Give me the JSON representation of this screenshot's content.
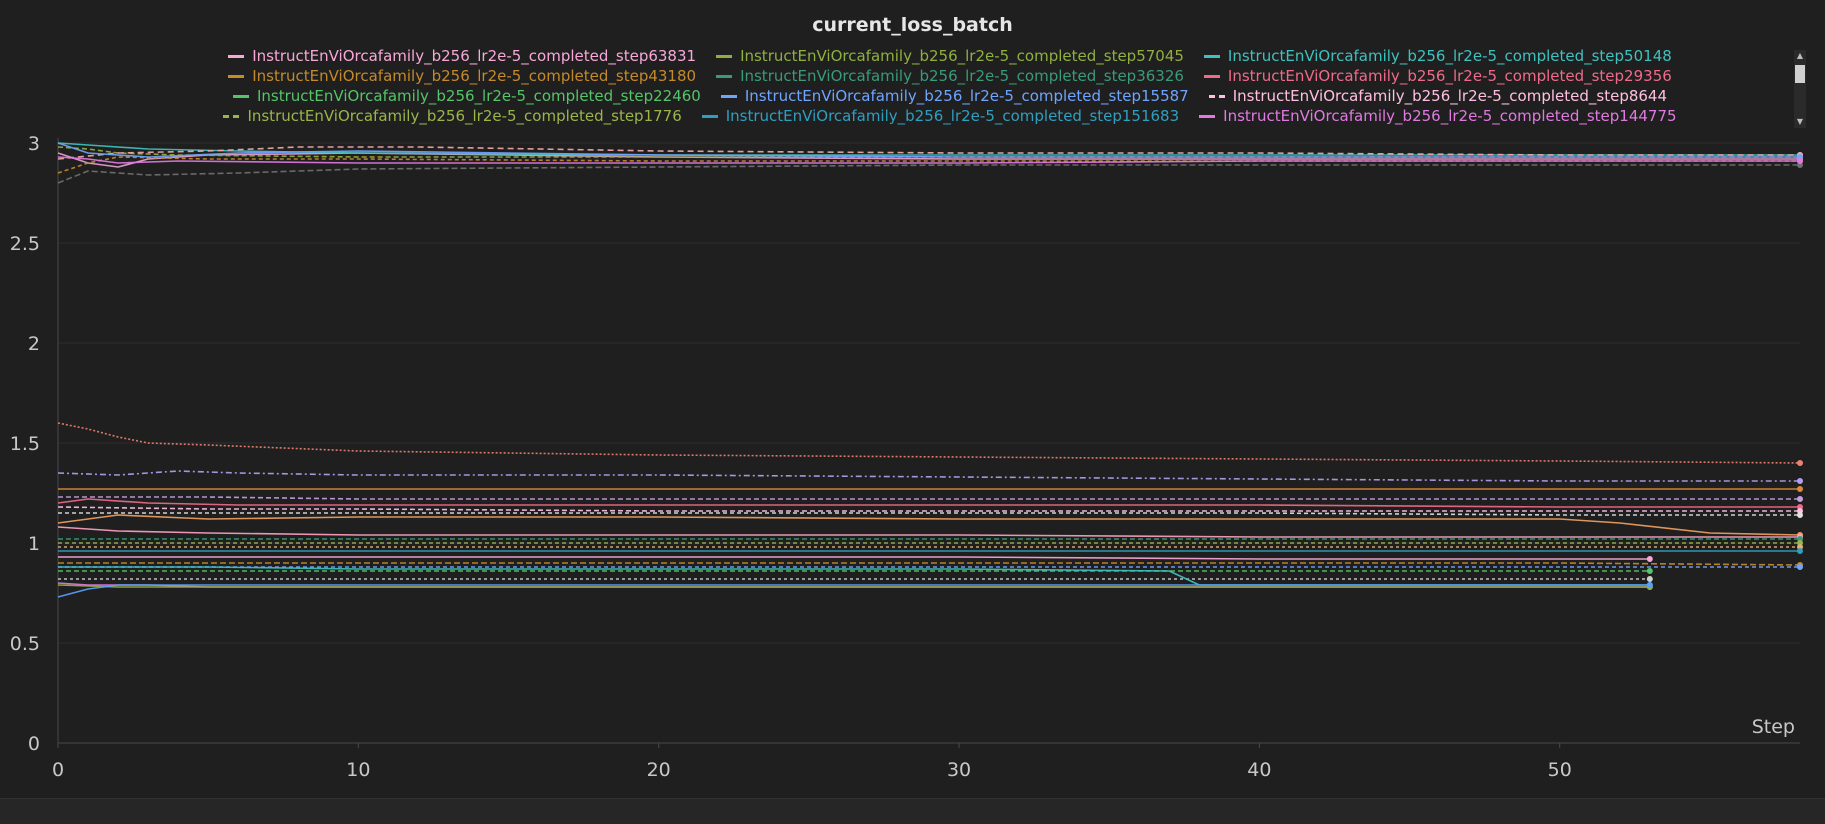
{
  "chart_data": {
    "type": "line",
    "title": "current_loss_batch",
    "xlabel": "Step",
    "ylabel": "",
    "xlim": [
      0,
      58
    ],
    "ylim": [
      0,
      3
    ],
    "x_ticks": [
      "0",
      "10",
      "20",
      "30",
      "40",
      "50"
    ],
    "y_ticks": [
      "0",
      "0.5",
      "1",
      "1.5",
      "2",
      "2.5",
      "3"
    ],
    "grid": true,
    "legend_position": "top",
    "legend": [
      {
        "name": "InstructEnViOrcafamily_b256_lr2e-5_completed_step63831",
        "color": "#f7a8d8",
        "dashed": false
      },
      {
        "name": "InstructEnViOrcafamily_b256_lr2e-5_completed_step57045",
        "color": "#8fb040",
        "dashed": false
      },
      {
        "name": "InstructEnViOrcafamily_b256_lr2e-5_completed_step50148",
        "color": "#3fc1bf",
        "dashed": false
      },
      {
        "name": "InstructEnViOrcafamily_b256_lr2e-5_completed_step43180",
        "color": "#c58a2a",
        "dashed": false
      },
      {
        "name": "InstructEnViOrcafamily_b256_lr2e-5_completed_step36326",
        "color": "#3a9a7a",
        "dashed": false
      },
      {
        "name": "InstructEnViOrcafamily_b256_lr2e-5_completed_step29356",
        "color": "#f06a8a",
        "dashed": false
      },
      {
        "name": "InstructEnViOrcafamily_b256_lr2e-5_completed_step22460",
        "color": "#55c46a",
        "dashed": false
      },
      {
        "name": "InstructEnViOrcafamily_b256_lr2e-5_completed_step15587",
        "color": "#6fa4ff",
        "dashed": false
      },
      {
        "name": "InstructEnViOrcafamily_b256_lr2e-5_completed_step8644",
        "color": "#ffc0e0",
        "dashed": true
      },
      {
        "name": "InstructEnViOrcafamily_b256_lr2e-5_completed_step1776",
        "color": "#9ab54a",
        "dashed": true
      },
      {
        "name": "InstructEnViOrcafamily_b256_lr2e-5_completed_step151683",
        "color": "#2f9fc0",
        "dashed": false
      },
      {
        "name": "InstructEnViOrcafamily_b256_lr2e-5_completed_step144775",
        "color": "#e07ae0",
        "dashed": false
      }
    ],
    "series": [
      {
        "color": "#e8a0d0",
        "dash": "",
        "x": [
          0,
          1,
          2,
          3,
          5,
          10,
          20,
          30,
          40,
          50,
          58
        ],
        "y": [
          2.95,
          2.9,
          2.88,
          2.92,
          2.94,
          2.95,
          2.93,
          2.92,
          2.92,
          2.92,
          2.92
        ]
      },
      {
        "color": "#8fb040",
        "dash": "5,3",
        "x": [
          0,
          1,
          2,
          4,
          10,
          20,
          30,
          40,
          50,
          58
        ],
        "y": [
          2.98,
          2.97,
          2.95,
          2.94,
          2.93,
          2.93,
          2.93,
          2.93,
          2.93,
          2.93
        ]
      },
      {
        "color": "#3fc1bf",
        "dash": "",
        "x": [
          0,
          1,
          3,
          6,
          10,
          20,
          30,
          40,
          50,
          58
        ],
        "y": [
          3.0,
          2.99,
          2.97,
          2.96,
          2.95,
          2.94,
          2.94,
          2.94,
          2.94,
          2.94
        ]
      },
      {
        "color": "#c58a2a",
        "dash": "4,3",
        "x": [
          0,
          1,
          2,
          5,
          10,
          20,
          30,
          40,
          50,
          58
        ],
        "y": [
          2.85,
          2.9,
          2.93,
          2.92,
          2.92,
          2.91,
          2.91,
          2.91,
          2.91,
          2.91
        ]
      },
      {
        "color": "#707070",
        "dash": "6,3",
        "x": [
          0,
          1,
          3,
          6,
          10,
          20,
          30,
          40,
          50,
          58
        ],
        "y": [
          2.8,
          2.86,
          2.84,
          2.85,
          2.87,
          2.88,
          2.89,
          2.89,
          2.89,
          2.89
        ]
      },
      {
        "color": "#f4a8a8",
        "dash": "6,4",
        "x": [
          0,
          2,
          5,
          8,
          12,
          20,
          30,
          40,
          50,
          58
        ],
        "y": [
          2.92,
          2.95,
          2.96,
          2.98,
          2.98,
          2.96,
          2.95,
          2.95,
          2.94,
          2.94
        ]
      },
      {
        "color": "#6fa4ff",
        "dash": "",
        "x": [
          0,
          1,
          3,
          6,
          10,
          20,
          30,
          40,
          50,
          58
        ],
        "y": [
          3.0,
          2.95,
          2.93,
          2.95,
          2.96,
          2.94,
          2.93,
          2.93,
          2.93,
          2.93
        ]
      },
      {
        "color": "#e07ae0",
        "dash": "",
        "x": [
          0,
          1,
          2,
          4,
          10,
          20,
          30,
          40,
          50,
          58
        ],
        "y": [
          2.93,
          2.92,
          2.9,
          2.91,
          2.9,
          2.9,
          2.9,
          2.91,
          2.91,
          2.91
        ]
      },
      {
        "color": "#f08070",
        "dash": "2,2",
        "x": [
          0,
          1,
          2,
          3,
          5,
          10,
          15,
          20,
          30,
          40,
          50,
          58
        ],
        "y": [
          1.6,
          1.57,
          1.53,
          1.5,
          1.49,
          1.46,
          1.45,
          1.44,
          1.43,
          1.42,
          1.41,
          1.4
        ]
      },
      {
        "color": "#b0a0f0",
        "dash": "6,3,2,3",
        "x": [
          0,
          2,
          4,
          6,
          10,
          20,
          30,
          40,
          50,
          58
        ],
        "y": [
          1.35,
          1.34,
          1.36,
          1.35,
          1.34,
          1.34,
          1.33,
          1.32,
          1.31,
          1.31
        ]
      },
      {
        "color": "#d98a3a",
        "dash": "",
        "x": [
          0,
          2,
          5,
          10,
          20,
          30,
          40,
          50,
          58
        ],
        "y": [
          1.27,
          1.27,
          1.27,
          1.27,
          1.27,
          1.27,
          1.27,
          1.27,
          1.27
        ]
      },
      {
        "color": "#c4a0e0",
        "dash": "5,3",
        "x": [
          0,
          5,
          10,
          20,
          30,
          40,
          50,
          58
        ],
        "y": [
          1.23,
          1.23,
          1.22,
          1.22,
          1.22,
          1.22,
          1.22,
          1.22
        ]
      },
      {
        "color": "#f06a8a",
        "dash": "",
        "x": [
          0,
          1,
          3,
          6,
          10,
          20,
          30,
          40,
          50,
          58
        ],
        "y": [
          1.2,
          1.22,
          1.2,
          1.19,
          1.19,
          1.19,
          1.19,
          1.19,
          1.18,
          1.18
        ]
      },
      {
        "color": "#ffc0e0",
        "dash": "5,3",
        "x": [
          0,
          5,
          10,
          20,
          30,
          40,
          50,
          58
        ],
        "y": [
          1.18,
          1.17,
          1.17,
          1.16,
          1.16,
          1.16,
          1.16,
          1.16
        ]
      },
      {
        "color": "#e0e0e0",
        "dash": "4,3",
        "x": [
          0,
          5,
          10,
          20,
          30,
          40,
          50,
          58
        ],
        "y": [
          1.15,
          1.15,
          1.15,
          1.15,
          1.15,
          1.15,
          1.14,
          1.14
        ]
      },
      {
        "color": "#f0a060",
        "dash": "",
        "x": [
          0,
          2,
          5,
          10,
          20,
          30,
          40,
          50,
          52,
          55,
          58
        ],
        "y": [
          1.1,
          1.14,
          1.12,
          1.13,
          1.13,
          1.12,
          1.12,
          1.12,
          1.1,
          1.05,
          1.04
        ]
      },
      {
        "color": "#ff9fc0",
        "dash": "",
        "x": [
          0,
          2,
          5,
          10,
          20,
          30,
          40,
          50,
          58
        ],
        "y": [
          1.08,
          1.06,
          1.05,
          1.04,
          1.04,
          1.04,
          1.03,
          1.03,
          1.03
        ]
      },
      {
        "color": "#3a9a7a",
        "dash": "5,3",
        "x": [
          0,
          5,
          10,
          20,
          30,
          40,
          50,
          58
        ],
        "y": [
          1.02,
          1.02,
          1.02,
          1.02,
          1.02,
          1.02,
          1.02,
          1.02
        ]
      },
      {
        "color": "#9ab54a",
        "dash": "4,3",
        "x": [
          0,
          5,
          10,
          20,
          30,
          40,
          50,
          58
        ],
        "y": [
          1.0,
          1.0,
          1.0,
          1.0,
          1.0,
          1.0,
          1.0,
          1.0
        ]
      },
      {
        "color": "#e0b070",
        "dash": "3,3",
        "x": [
          0,
          5,
          10,
          20,
          30,
          40,
          50,
          58
        ],
        "y": [
          0.98,
          0.98,
          0.98,
          0.98,
          0.98,
          0.98,
          0.98,
          0.98
        ]
      },
      {
        "color": "#2f9fc0",
        "dash": "",
        "x": [
          0,
          5,
          10,
          20,
          30,
          40,
          50,
          58
        ],
        "y": [
          0.96,
          0.96,
          0.96,
          0.96,
          0.96,
          0.96,
          0.96,
          0.96
        ]
      },
      {
        "color": "#f7a8d8",
        "dash": "",
        "x": [
          0,
          5,
          10,
          20,
          30,
          40,
          50,
          53
        ],
        "y": [
          0.93,
          0.93,
          0.93,
          0.93,
          0.93,
          0.92,
          0.92,
          0.92
        ]
      },
      {
        "color": "#c58a2a",
        "dash": "6,3",
        "x": [
          0,
          5,
          10,
          20,
          30,
          40,
          50,
          58
        ],
        "y": [
          0.9,
          0.9,
          0.9,
          0.9,
          0.9,
          0.9,
          0.9,
          0.89
        ]
      },
      {
        "color": "#6fa4ff",
        "dash": "4,3",
        "x": [
          0,
          5,
          10,
          20,
          30,
          40,
          50,
          58
        ],
        "y": [
          0.88,
          0.88,
          0.88,
          0.88,
          0.88,
          0.88,
          0.88,
          0.88
        ]
      },
      {
        "color": "#55c46a",
        "dash": "5,3",
        "x": [
          0,
          5,
          10,
          20,
          30,
          40,
          50,
          53
        ],
        "y": [
          0.86,
          0.86,
          0.86,
          0.86,
          0.86,
          0.86,
          0.86,
          0.86
        ]
      },
      {
        "color": "#d0d0d0",
        "dash": "3,3",
        "x": [
          0,
          5,
          10,
          20,
          30,
          40,
          50,
          53
        ],
        "y": [
          0.82,
          0.82,
          0.82,
          0.82,
          0.82,
          0.82,
          0.82,
          0.82
        ]
      },
      {
        "color": "#3fc1bf",
        "dash": "",
        "x": [
          0,
          5,
          10,
          20,
          30,
          37,
          38,
          40,
          50,
          53
        ],
        "y": [
          0.88,
          0.88,
          0.87,
          0.87,
          0.87,
          0.86,
          0.79,
          0.79,
          0.79,
          0.79
        ]
      },
      {
        "color": "#e07ae0",
        "dash": "",
        "x": [
          0,
          1,
          3,
          5,
          10,
          20,
          30,
          40,
          50,
          53
        ],
        "y": [
          0.8,
          0.79,
          0.79,
          0.78,
          0.78,
          0.78,
          0.78,
          0.78,
          0.78,
          0.78
        ]
      },
      {
        "color": "#8fb040",
        "dash": "",
        "x": [
          0,
          2,
          5,
          10,
          20,
          30,
          40,
          50,
          53
        ],
        "y": [
          0.79,
          0.78,
          0.78,
          0.78,
          0.78,
          0.78,
          0.78,
          0.78,
          0.78
        ]
      },
      {
        "color": "#5aa0ff",
        "dash": "",
        "x": [
          0,
          1,
          2,
          5,
          10,
          20,
          30,
          40,
          50,
          53
        ],
        "y": [
          0.73,
          0.77,
          0.79,
          0.79,
          0.79,
          0.79,
          0.79,
          0.79,
          0.79,
          0.79
        ]
      }
    ]
  }
}
